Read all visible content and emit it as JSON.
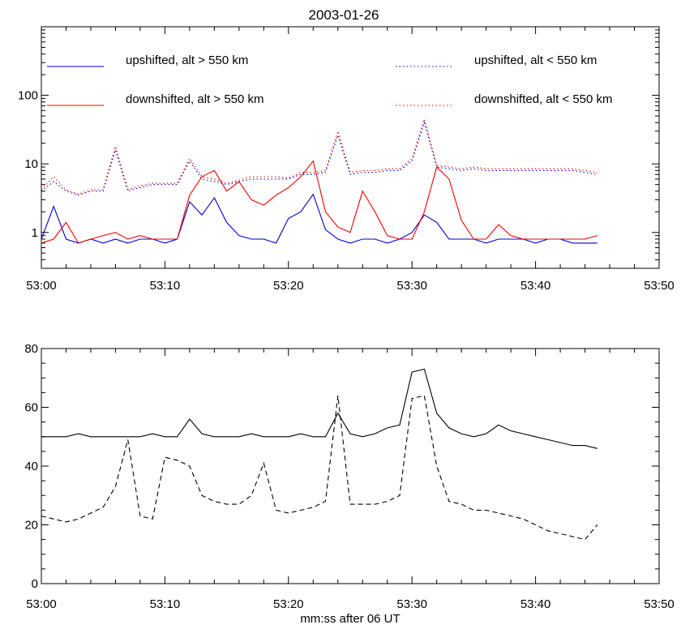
{
  "chart_data": [
    {
      "type": "line",
      "title": "2003-01-26",
      "xlabel": "",
      "ylabel": "",
      "y_scale": "log",
      "ylim": [
        0.3,
        1000
      ],
      "xlim": [
        "53:00",
        "53:50"
      ],
      "x_ticks": [
        "53:00",
        "53:10",
        "53:20",
        "53:30",
        "53:40",
        "53:50"
      ],
      "y_ticks": [
        "1",
        "10",
        "100"
      ],
      "legend_location": "top",
      "series": [
        {
          "name": "upshifted, alt > 550 km",
          "color": "#0000cc",
          "style": "solid",
          "x": [
            "53:00",
            "53:01",
            "53:02",
            "53:03",
            "53:04",
            "53:05",
            "53:06",
            "53:07",
            "53:08",
            "53:09",
            "53:10",
            "53:11",
            "53:12",
            "53:13",
            "53:14",
            "53:15",
            "53:16",
            "53:17",
            "53:18",
            "53:19",
            "53:20",
            "53:21",
            "53:22",
            "53:23",
            "53:24",
            "53:25",
            "53:26",
            "53:27",
            "53:28",
            "53:29",
            "53:30",
            "53:31",
            "53:32",
            "53:33",
            "53:34",
            "53:35",
            "53:36",
            "53:37",
            "53:38",
            "53:39",
            "53:40",
            "53:41",
            "53:42",
            "53:43",
            "53:44",
            "53:45"
          ],
          "values": [
            0.8,
            2.4,
            0.8,
            0.7,
            0.8,
            0.7,
            0.8,
            0.7,
            0.8,
            0.8,
            0.7,
            0.8,
            2.8,
            1.8,
            3.2,
            1.4,
            0.9,
            0.8,
            0.8,
            0.7,
            1.6,
            2.0,
            3.6,
            1.1,
            0.8,
            0.7,
            0.8,
            0.8,
            0.7,
            0.8,
            1.0,
            1.8,
            1.4,
            0.8,
            0.8,
            0.8,
            0.7,
            0.8,
            0.8,
            0.8,
            0.7,
            0.8,
            0.8,
            0.7,
            0.7,
            0.7
          ]
        },
        {
          "name": "downshifted, alt > 550 km",
          "color": "#ee0000",
          "style": "solid",
          "x": [
            "53:00",
            "53:01",
            "53:02",
            "53:03",
            "53:04",
            "53:05",
            "53:06",
            "53:07",
            "53:08",
            "53:09",
            "53:10",
            "53:11",
            "53:12",
            "53:13",
            "53:14",
            "53:15",
            "53:16",
            "53:17",
            "53:18",
            "53:19",
            "53:20",
            "53:21",
            "53:22",
            "53:23",
            "53:24",
            "53:25",
            "53:26",
            "53:27",
            "53:28",
            "53:29",
            "53:30",
            "53:31",
            "53:32",
            "53:33",
            "53:34",
            "53:35",
            "53:36",
            "53:37",
            "53:38",
            "53:39",
            "53:40",
            "53:41",
            "53:42",
            "53:43",
            "53:44",
            "53:45"
          ],
          "values": [
            0.7,
            0.8,
            1.4,
            0.7,
            0.8,
            0.9,
            1.0,
            0.8,
            0.9,
            0.8,
            0.8,
            0.8,
            3.5,
            6.5,
            8.0,
            4.0,
            5.5,
            3.0,
            2.5,
            3.5,
            4.5,
            6.5,
            11.0,
            2.0,
            1.2,
            1.0,
            4.0,
            2.0,
            0.9,
            0.8,
            0.8,
            2.0,
            9.0,
            6.0,
            1.5,
            0.8,
            0.8,
            1.3,
            0.9,
            0.8,
            0.8,
            0.8,
            0.8,
            0.8,
            0.8,
            0.9
          ]
        },
        {
          "name": "upshifted, alt < 550 km",
          "color": "#0000cc",
          "style": "dotted",
          "x": [
            "53:00",
            "53:01",
            "53:02",
            "53:03",
            "53:04",
            "53:05",
            "53:06",
            "53:07",
            "53:08",
            "53:09",
            "53:10",
            "53:11",
            "53:12",
            "53:13",
            "53:14",
            "53:15",
            "53:16",
            "53:17",
            "53:18",
            "53:19",
            "53:20",
            "53:21",
            "53:22",
            "53:23",
            "53:24",
            "53:25",
            "53:26",
            "53:27",
            "53:28",
            "53:29",
            "53:30",
            "53:31",
            "53:32",
            "53:33",
            "53:34",
            "53:35",
            "53:36",
            "53:37",
            "53:38",
            "53:39",
            "53:40",
            "53:41",
            "53:42",
            "53:43",
            "53:44",
            "53:45"
          ],
          "values": [
            4.0,
            5.5,
            4.0,
            3.5,
            4.0,
            4.0,
            16.0,
            4.0,
            4.5,
            5.0,
            5.0,
            5.0,
            11.0,
            6.0,
            5.5,
            5.0,
            5.5,
            6.0,
            6.0,
            6.0,
            6.0,
            7.0,
            7.0,
            7.5,
            26.0,
            7.0,
            7.5,
            7.5,
            8.0,
            8.0,
            11.0,
            40.0,
            9.0,
            8.5,
            8.0,
            8.5,
            8.0,
            8.0,
            8.0,
            8.0,
            8.0,
            8.0,
            8.0,
            8.0,
            7.5,
            7.0
          ]
        },
        {
          "name": "downshifted, alt < 550 km",
          "color": "#ee0000",
          "style": "dotted",
          "x": [
            "53:00",
            "53:01",
            "53:02",
            "53:03",
            "53:04",
            "53:05",
            "53:06",
            "53:07",
            "53:08",
            "53:09",
            "53:10",
            "53:11",
            "53:12",
            "53:13",
            "53:14",
            "53:15",
            "53:16",
            "53:17",
            "53:18",
            "53:19",
            "53:20",
            "53:21",
            "53:22",
            "53:23",
            "53:24",
            "53:25",
            "53:26",
            "53:27",
            "53:28",
            "53:29",
            "53:30",
            "53:31",
            "53:32",
            "53:33",
            "53:34",
            "53:35",
            "53:36",
            "53:37",
            "53:38",
            "53:39",
            "53:40",
            "53:41",
            "53:42",
            "53:43",
            "53:44",
            "53:45"
          ],
          "values": [
            4.2,
            6.5,
            4.2,
            3.6,
            4.2,
            4.2,
            18.0,
            4.2,
            4.8,
            5.2,
            5.2,
            5.2,
            12.0,
            6.5,
            6.0,
            5.2,
            5.8,
            6.5,
            6.5,
            6.5,
            6.2,
            7.5,
            7.5,
            8.0,
            30.0,
            7.5,
            8.0,
            8.0,
            8.5,
            8.5,
            12.0,
            45.0,
            9.5,
            9.0,
            8.5,
            9.0,
            8.5,
            8.5,
            8.5,
            8.5,
            8.5,
            8.5,
            8.5,
            8.5,
            8.0,
            7.5
          ]
        }
      ]
    },
    {
      "type": "line",
      "title": "",
      "xlabel": "mm:ss after 06 UT",
      "ylabel": "",
      "ylim": [
        0,
        80
      ],
      "xlim": [
        "53:00",
        "53:50"
      ],
      "x_ticks": [
        "53:00",
        "53:10",
        "53:20",
        "53:30",
        "53:40",
        "53:50"
      ],
      "y_ticks": [
        "0",
        "20",
        "40",
        "60",
        "80"
      ],
      "series": [
        {
          "color": "#000000",
          "style": "solid",
          "x": [
            "53:00",
            "53:01",
            "53:02",
            "53:03",
            "53:04",
            "53:05",
            "53:06",
            "53:07",
            "53:08",
            "53:09",
            "53:10",
            "53:11",
            "53:12",
            "53:13",
            "53:14",
            "53:15",
            "53:16",
            "53:17",
            "53:18",
            "53:19",
            "53:20",
            "53:21",
            "53:22",
            "53:23",
            "53:24",
            "53:25",
            "53:26",
            "53:27",
            "53:28",
            "53:29",
            "53:30",
            "53:31",
            "53:32",
            "53:33",
            "53:34",
            "53:35",
            "53:36",
            "53:37",
            "53:38",
            "53:39",
            "53:40",
            "53:41",
            "53:42",
            "53:43",
            "53:44",
            "53:45"
          ],
          "values": [
            50,
            50,
            50,
            51,
            50,
            50,
            50,
            50,
            50,
            51,
            50,
            50,
            56,
            51,
            50,
            50,
            50,
            51,
            50,
            50,
            50,
            51,
            50,
            50,
            58,
            51,
            50,
            51,
            53,
            54,
            72,
            73,
            58,
            53,
            51,
            50,
            51,
            54,
            52,
            51,
            50,
            49,
            48,
            47,
            47,
            46
          ]
        },
        {
          "color": "#000000",
          "style": "dashed",
          "x": [
            "53:00",
            "53:01",
            "53:02",
            "53:03",
            "53:04",
            "53:05",
            "53:06",
            "53:07",
            "53:08",
            "53:09",
            "53:10",
            "53:11",
            "53:12",
            "53:13",
            "53:14",
            "53:15",
            "53:16",
            "53:17",
            "53:18",
            "53:19",
            "53:20",
            "53:21",
            "53:22",
            "53:23",
            "53:24",
            "53:25",
            "53:26",
            "53:27",
            "53:28",
            "53:29",
            "53:30",
            "53:31",
            "53:32",
            "53:33",
            "53:34",
            "53:35",
            "53:36",
            "53:37",
            "53:38",
            "53:39",
            "53:40",
            "53:41",
            "53:42",
            "53:43",
            "53:44",
            "53:45"
          ],
          "values": [
            23,
            22,
            21,
            22,
            24,
            26,
            33,
            49,
            23,
            22,
            43,
            42,
            40,
            30,
            28,
            27,
            27,
            30,
            41,
            25,
            24,
            25,
            26,
            28,
            64,
            27,
            27,
            27,
            28,
            30,
            63,
            64,
            40,
            28,
            27,
            25,
            25,
            24,
            23,
            22,
            20,
            18,
            17,
            16,
            15,
            20
          ]
        }
      ]
    }
  ]
}
